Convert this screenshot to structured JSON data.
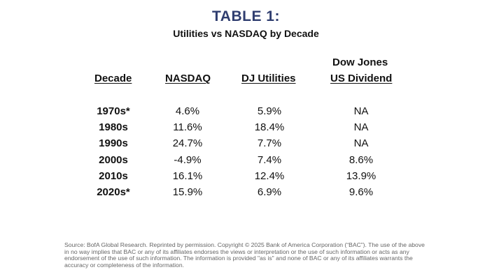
{
  "title": "TABLE 1:",
  "subtitle": "Utilities vs NASDAQ by Decade",
  "columns": {
    "decade": "Decade",
    "nasdaq": "NASDAQ",
    "dj_utilities": "DJ Utilities",
    "dow_jones_line1": "Dow Jones",
    "dow_jones_line2": "US Dividend"
  },
  "rows": [
    {
      "decade": "1970s*",
      "nasdaq": "4.6%",
      "dj_utilities": "5.9%",
      "dow_jones_us_dividend": "NA"
    },
    {
      "decade": "1980s",
      "nasdaq": "11.6%",
      "dj_utilities": "18.4%",
      "dow_jones_us_dividend": "NA"
    },
    {
      "decade": "1990s",
      "nasdaq": "24.7%",
      "dj_utilities": "7.7%",
      "dow_jones_us_dividend": "NA"
    },
    {
      "decade": "2000s",
      "nasdaq": "-4.9%",
      "dj_utilities": "7.4%",
      "dow_jones_us_dividend": "8.6%"
    },
    {
      "decade": "2010s",
      "nasdaq": "16.1%",
      "dj_utilities": "12.4%",
      "dow_jones_us_dividend": "13.9%"
    },
    {
      "decade": "2020s*",
      "nasdaq": "15.9%",
      "dj_utilities": "6.9%",
      "dow_jones_us_dividend": "9.6%"
    }
  ],
  "source": "Source: BofA Global Research. Reprinted by permission. Copyright © 2025 Bank of America Corporation (“BAC”). The use of the above in no way implies that BAC or any of its affiliates endorses the views or interpretation or the use of such information or acts as any endorsement of the use of such information. The information is provided \"as is\" and none of BAC or any of its affiliates warrants the accuracy or completeness of the information.",
  "colors": {
    "title": "#2f3d6f",
    "text": "#111111",
    "footnote": "#666666"
  },
  "chart_data": {
    "type": "table",
    "title": "TABLE 1:",
    "subtitle": "Utilities vs NASDAQ by Decade",
    "columns": [
      "Decade",
      "NASDAQ",
      "DJ Utilities",
      "Dow Jones US Dividend"
    ],
    "categories": [
      "1970s*",
      "1980s",
      "1990s",
      "2000s",
      "2010s",
      "2020s*"
    ],
    "series": [
      {
        "name": "NASDAQ",
        "values": [
          4.6,
          11.6,
          24.7,
          -4.9,
          16.1,
          15.9
        ]
      },
      {
        "name": "DJ Utilities",
        "values": [
          5.9,
          18.4,
          7.7,
          7.4,
          12.4,
          6.9
        ]
      },
      {
        "name": "Dow Jones US Dividend",
        "values": [
          null,
          null,
          null,
          8.6,
          13.9,
          9.6
        ]
      }
    ]
  }
}
